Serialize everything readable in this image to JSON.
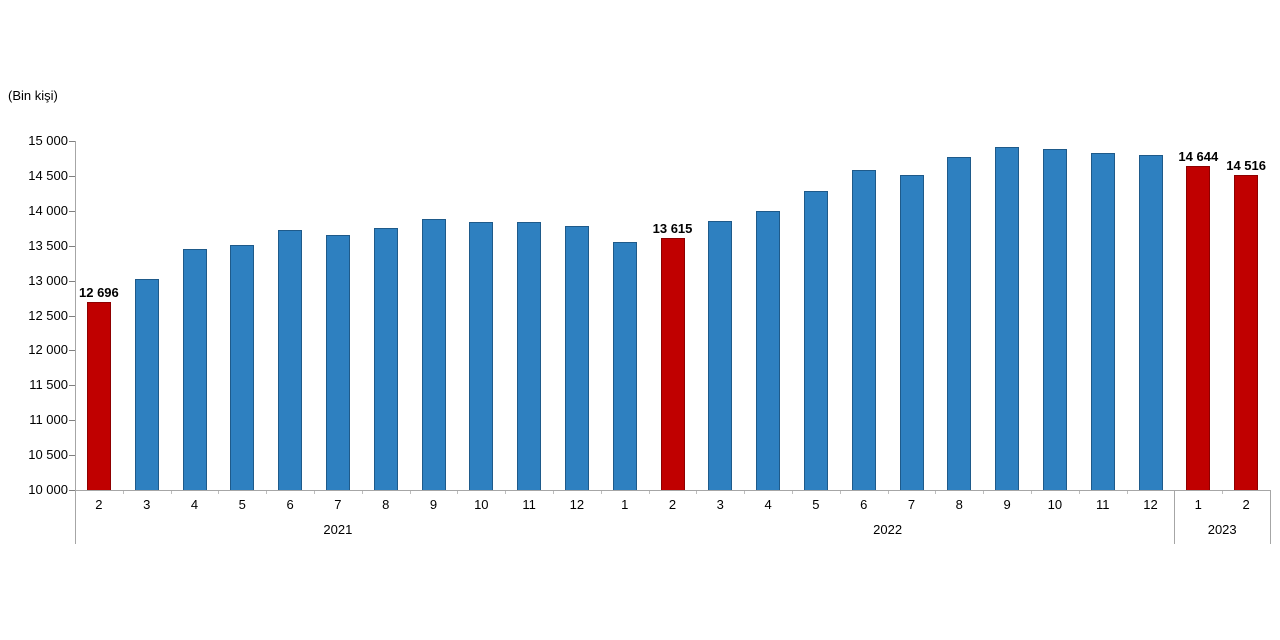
{
  "chart_data": {
    "type": "bar",
    "title": "",
    "unit_label": "(Bin kişi)",
    "xlabel": "",
    "ylabel": "(Bin kişi)",
    "ylim": [
      10000,
      15000
    ],
    "y_tick_step": 500,
    "y_tick_labels": [
      "15 000",
      "14 500",
      "14 000",
      "13 500",
      "13 000",
      "12 500",
      "12 000",
      "11 500",
      "11 000",
      "10 500",
      "10 000"
    ],
    "grid": false,
    "legend_position": "none",
    "month_labels": [
      "2",
      "3",
      "4",
      "5",
      "6",
      "7",
      "8",
      "9",
      "10",
      "11",
      "12",
      "1",
      "2",
      "3",
      "4",
      "5",
      "6",
      "7",
      "8",
      "9",
      "10",
      "11",
      "12",
      "1",
      "2"
    ],
    "year_groups": [
      {
        "label": "2021",
        "count": 11,
        "boxed": false
      },
      {
        "label": "2022",
        "count": 12,
        "boxed": false
      },
      {
        "label": "2023",
        "count": 2,
        "boxed": true
      }
    ],
    "values": [
      12696,
      13020,
      13450,
      13510,
      13720,
      13650,
      13755,
      13885,
      13835,
      13840,
      13780,
      13550,
      13615,
      13850,
      13990,
      14290,
      14590,
      14520,
      14765,
      14910,
      14880,
      14830,
      14795,
      14644,
      14516
    ],
    "highlighted_indices": [
      0,
      12,
      23,
      24
    ],
    "data_labels": [
      {
        "index": 0,
        "text": "12 696"
      },
      {
        "index": 12,
        "text": "13 615"
      },
      {
        "index": 23,
        "text": "14 644"
      },
      {
        "index": 24,
        "text": "14 516"
      }
    ],
    "colors": {
      "bar_fill": "#2E80C0",
      "bar_border": "#1E5A8A",
      "highlight_fill": "#C00000",
      "highlight_border": "#8E0000",
      "axis_line": "#A6A6A6",
      "tick": "#7F7F7F",
      "text": "#000000"
    }
  }
}
